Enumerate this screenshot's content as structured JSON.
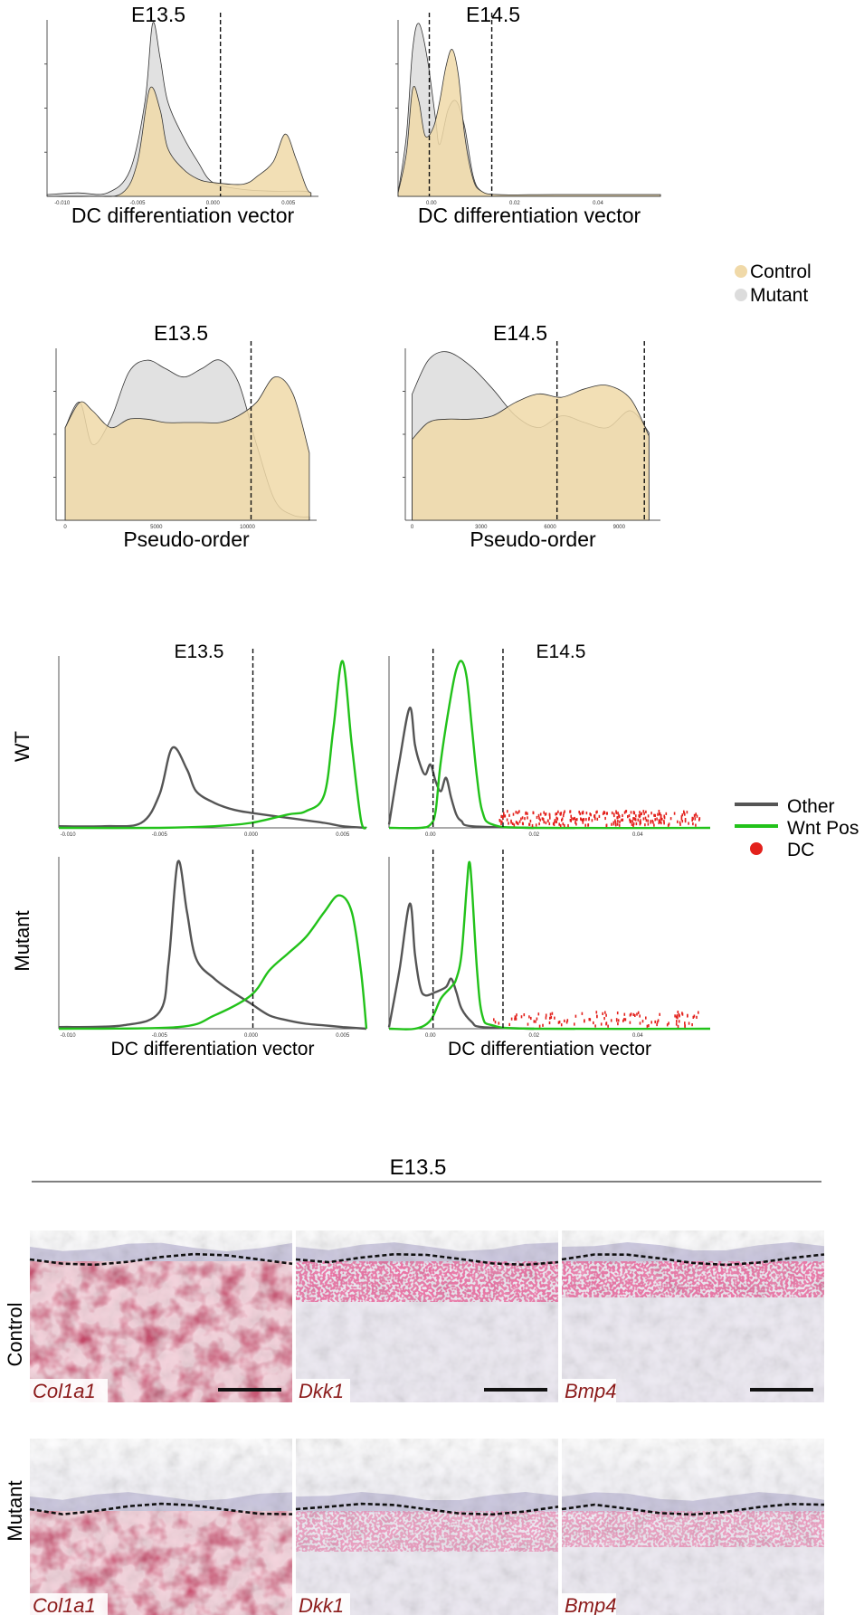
{
  "colors": {
    "control": "#f0d9a8",
    "mutant": "#dcdcdc",
    "other": "#555555",
    "wnt": "#22c21a",
    "dc": "#e3211c",
    "ish_label": "#8b1a1a"
  },
  "legend_top": {
    "items": [
      "Control",
      "Mutant"
    ]
  },
  "legend_mid": {
    "items": [
      "Other",
      "Wnt Pos",
      "DC"
    ]
  },
  "row_labels": {
    "wt": "WT",
    "mutant": "Mutant"
  },
  "ish": {
    "title": "E13.5",
    "row_labels": [
      "Control",
      "Mutant"
    ],
    "genes": [
      "Col1a1",
      "Dkk1",
      "Bmp4"
    ]
  },
  "chart_data": [
    {
      "id": "A1",
      "type": "area",
      "title": "E13.5",
      "xlabel": "DC differentiation vector",
      "xlim": [
        -0.011,
        0.007
      ],
      "x_ticks": [
        -0.01,
        -0.005,
        0.0,
        0.005
      ],
      "x_tick_labels": [
        "-0.010",
        "-0.005",
        "0.000",
        "0.005"
      ],
      "threshold": [
        0.0005
      ],
      "series": [
        {
          "name": "Mutant",
          "x": [
            -0.011,
            -0.009,
            -0.007,
            -0.0055,
            -0.0045,
            -0.004,
            -0.0035,
            -0.003,
            -0.002,
            -0.001,
            0,
            0.002,
            0.004,
            0.006,
            0.0065
          ],
          "y": [
            0.01,
            0.02,
            0.02,
            0.15,
            0.55,
            1.0,
            0.8,
            0.55,
            0.35,
            0.2,
            0.08,
            0.04,
            0.03,
            0.03,
            0.02
          ]
        },
        {
          "name": "Control",
          "x": [
            -0.011,
            -0.008,
            -0.006,
            -0.005,
            -0.0042,
            -0.0035,
            -0.003,
            -0.002,
            -0.001,
            0,
            0.002,
            0.003,
            0.004,
            0.0048,
            0.0055,
            0.0062,
            0.0065
          ],
          "y": [
            0,
            0,
            0.02,
            0.2,
            0.62,
            0.5,
            0.28,
            0.16,
            0.1,
            0.08,
            0.07,
            0.12,
            0.2,
            0.36,
            0.22,
            0.05,
            0.02
          ]
        }
      ]
    },
    {
      "id": "A2",
      "type": "area",
      "title": "E14.5",
      "xlabel": "DC differentiation vector",
      "xlim": [
        -0.008,
        0.055
      ],
      "x_ticks": [
        0.0,
        0.02,
        0.04
      ],
      "x_tick_labels": [
        "0.00",
        "0.02",
        "0.04"
      ],
      "threshold": [
        -0.0005,
        0.0145
      ],
      "series": [
        {
          "name": "Mutant",
          "x": [
            -0.008,
            -0.006,
            -0.0045,
            -0.003,
            -0.001,
            0.001,
            0.002,
            0.004,
            0.006,
            0.008,
            0.01,
            0.012,
            0.016,
            0.03,
            0.055
          ],
          "y": [
            0.02,
            0.35,
            0.85,
            1.0,
            0.8,
            0.45,
            0.3,
            0.5,
            0.55,
            0.4,
            0.12,
            0.03,
            0.01,
            0.01,
            0.01
          ]
        },
        {
          "name": "Control",
          "x": [
            -0.008,
            -0.006,
            -0.0045,
            -0.003,
            -0.0015,
            0.0005,
            0.002,
            0.0035,
            0.005,
            0.0065,
            0.008,
            0.01,
            0.012,
            0.016,
            0.03,
            0.055
          ],
          "y": [
            0.02,
            0.25,
            0.62,
            0.55,
            0.35,
            0.4,
            0.55,
            0.75,
            0.85,
            0.7,
            0.35,
            0.1,
            0.03,
            0.01,
            0.01,
            0.01
          ]
        }
      ]
    },
    {
      "id": "B1",
      "type": "area",
      "title": "E13.5",
      "xlabel": "Pseudo-order",
      "xlim": [
        -500,
        13800
      ],
      "x_ticks": [
        0,
        5000,
        10000
      ],
      "x_tick_labels": [
        "0",
        "5000",
        "10000"
      ],
      "threshold": [
        10200
      ],
      "series": [
        {
          "name": "Mutant",
          "x": [
            0,
            800,
            1500,
            2500,
            3500,
            4500,
            5500,
            6500,
            7500,
            8500,
            9500,
            10500,
            11500,
            12500,
            13400
          ],
          "y": [
            0.55,
            0.7,
            0.45,
            0.6,
            0.88,
            0.95,
            0.9,
            0.85,
            0.9,
            0.95,
            0.82,
            0.45,
            0.12,
            0.03,
            0.02
          ]
        },
        {
          "name": "Control",
          "x": [
            0,
            800,
            1500,
            2500,
            3500,
            4500,
            5500,
            6500,
            7500,
            8500,
            9500,
            10500,
            11500,
            12500,
            13400
          ],
          "y": [
            0.55,
            0.7,
            0.65,
            0.55,
            0.6,
            0.6,
            0.58,
            0.58,
            0.58,
            0.58,
            0.62,
            0.7,
            0.85,
            0.75,
            0.4
          ]
        }
      ]
    },
    {
      "id": "B2",
      "type": "area",
      "title": "E14.5",
      "xlabel": "Pseudo-order",
      "xlim": [
        -300,
        10800
      ],
      "x_ticks": [
        0,
        3000,
        6000,
        9000
      ],
      "x_tick_labels": [
        "0",
        "3000",
        "6000",
        "9000"
      ],
      "threshold": [
        6300,
        10100
      ],
      "series": [
        {
          "name": "Mutant",
          "x": [
            0,
            700,
            1500,
            2500,
            3500,
            4500,
            5500,
            6500,
            7500,
            8500,
            9500,
            10300
          ],
          "y": [
            0.75,
            0.95,
            1.0,
            0.92,
            0.78,
            0.62,
            0.55,
            0.62,
            0.58,
            0.55,
            0.65,
            0.52
          ]
        },
        {
          "name": "Control",
          "x": [
            0,
            700,
            1500,
            2500,
            3500,
            4500,
            5500,
            6500,
            7500,
            8500,
            9500,
            10300
          ],
          "y": [
            0.48,
            0.58,
            0.6,
            0.6,
            0.62,
            0.7,
            0.75,
            0.73,
            0.78,
            0.8,
            0.72,
            0.5
          ]
        }
      ]
    },
    {
      "id": "C1",
      "type": "line",
      "title": "E13.5",
      "row": "WT",
      "xlim": [
        -0.0105,
        0.0063
      ],
      "x_ticks": [
        -0.01,
        -0.005,
        0.0,
        0.005
      ],
      "x_tick_labels": [
        "-0.010",
        "-0.005",
        "0.000",
        "0.005"
      ],
      "threshold": [
        0.0001
      ],
      "series": [
        {
          "name": "Other",
          "x": [
            -0.0105,
            -0.008,
            -0.006,
            -0.005,
            -0.0043,
            -0.0035,
            -0.003,
            -0.002,
            -0.001,
            0,
            0.002,
            0.004,
            0.005,
            0.0063
          ],
          "y": [
            0.01,
            0.01,
            0.03,
            0.2,
            0.48,
            0.35,
            0.22,
            0.15,
            0.11,
            0.09,
            0.06,
            0.03,
            0.01,
            0.0
          ]
        },
        {
          "name": "Wnt Pos",
          "x": [
            -0.0105,
            -0.005,
            -0.002,
            0,
            0.002,
            0.003,
            0.004,
            0.0045,
            0.005,
            0.0055,
            0.006,
            0.0063
          ],
          "y": [
            0.0,
            0.0,
            0.01,
            0.03,
            0.08,
            0.1,
            0.2,
            0.6,
            1.0,
            0.5,
            0.05,
            0.0
          ]
        }
      ]
    },
    {
      "id": "C2",
      "type": "line",
      "title": "E14.5",
      "row": "WT",
      "xlim": [
        -0.008,
        0.054
      ],
      "x_ticks": [
        0.0,
        0.02,
        0.04
      ],
      "x_tick_labels": [
        "0.00",
        "0.02",
        "0.04"
      ],
      "threshold": [
        0.0005,
        0.014
      ],
      "series": [
        {
          "name": "Other",
          "x": [
            -0.008,
            -0.006,
            -0.004,
            -0.003,
            -0.002,
            -0.001,
            0.0,
            0.001,
            0.002,
            0.003,
            0.004,
            0.005,
            0.006,
            0.008,
            0.02
          ],
          "y": [
            0.02,
            0.4,
            0.72,
            0.5,
            0.38,
            0.32,
            0.38,
            0.28,
            0.22,
            0.3,
            0.18,
            0.08,
            0.04,
            0.01,
            0.0
          ]
        },
        {
          "name": "Wnt Pos",
          "x": [
            -0.008,
            -0.002,
            0.0,
            0.001,
            0.002,
            0.004,
            0.005,
            0.006,
            0.007,
            0.008,
            0.009,
            0.01,
            0.012,
            0.02,
            0.054
          ],
          "y": [
            0.0,
            0.0,
            0.02,
            0.1,
            0.4,
            0.8,
            0.95,
            1.0,
            0.9,
            0.6,
            0.3,
            0.1,
            0.02,
            0.0,
            0.0
          ]
        }
      ],
      "dc_points": {
        "x_range": [
          0.013,
          0.052
        ],
        "count": 260
      }
    },
    {
      "id": "C3",
      "type": "line",
      "title": "",
      "row": "Mutant",
      "xlabel": "DC differentiation vector",
      "xlim": [
        -0.0105,
        0.0063
      ],
      "x_ticks": [
        -0.01,
        -0.005,
        0.0,
        0.005
      ],
      "x_tick_labels": [
        "-0.010",
        "-0.005",
        "0.000",
        "0.005"
      ],
      "threshold": [
        0.0001
      ],
      "series": [
        {
          "name": "Other",
          "x": [
            -0.0105,
            -0.007,
            -0.005,
            -0.0045,
            -0.004,
            -0.0035,
            -0.003,
            -0.002,
            -0.001,
            0,
            0.001,
            0.002,
            0.003,
            0.004,
            0.005,
            0.0063
          ],
          "y": [
            0.01,
            0.02,
            0.1,
            0.4,
            1.0,
            0.7,
            0.42,
            0.3,
            0.22,
            0.15,
            0.08,
            0.05,
            0.03,
            0.02,
            0.01,
            0.0
          ]
        },
        {
          "name": "Wnt Pos",
          "x": [
            -0.0105,
            -0.004,
            -0.002,
            0,
            0.001,
            0.002,
            0.003,
            0.004,
            0.0048,
            0.0055,
            0.006,
            0.0063
          ],
          "y": [
            0.0,
            0.01,
            0.08,
            0.2,
            0.35,
            0.45,
            0.55,
            0.7,
            0.8,
            0.7,
            0.35,
            0.0
          ]
        }
      ]
    },
    {
      "id": "C4",
      "type": "line",
      "title": "",
      "row": "Mutant",
      "xlabel": "DC differentiation vector",
      "xlim": [
        -0.008,
        0.054
      ],
      "x_ticks": [
        0.0,
        0.02,
        0.04
      ],
      "x_tick_labels": [
        "0.00",
        "0.02",
        "0.04"
      ],
      "threshold": [
        0.0005,
        0.014
      ],
      "series": [
        {
          "name": "Other",
          "x": [
            -0.008,
            -0.006,
            -0.004,
            -0.003,
            -0.002,
            -0.001,
            0.001,
            0.003,
            0.004,
            0.005,
            0.006,
            0.008,
            0.01,
            0.02
          ],
          "y": [
            0.01,
            0.35,
            0.75,
            0.45,
            0.25,
            0.2,
            0.22,
            0.25,
            0.3,
            0.22,
            0.12,
            0.04,
            0.01,
            0.0
          ]
        },
        {
          "name": "Wnt Pos",
          "x": [
            -0.008,
            -0.003,
            0.0,
            0.002,
            0.004,
            0.005,
            0.006,
            0.007,
            0.0075,
            0.008,
            0.009,
            0.01,
            0.012,
            0.02,
            0.054
          ],
          "y": [
            0.0,
            0.0,
            0.05,
            0.18,
            0.25,
            0.3,
            0.45,
            0.85,
            1.0,
            0.85,
            0.35,
            0.08,
            0.02,
            0.0,
            0.0
          ]
        }
      ],
      "dc_points": {
        "x_range": [
          0.012,
          0.052
        ],
        "count": 110
      }
    }
  ]
}
